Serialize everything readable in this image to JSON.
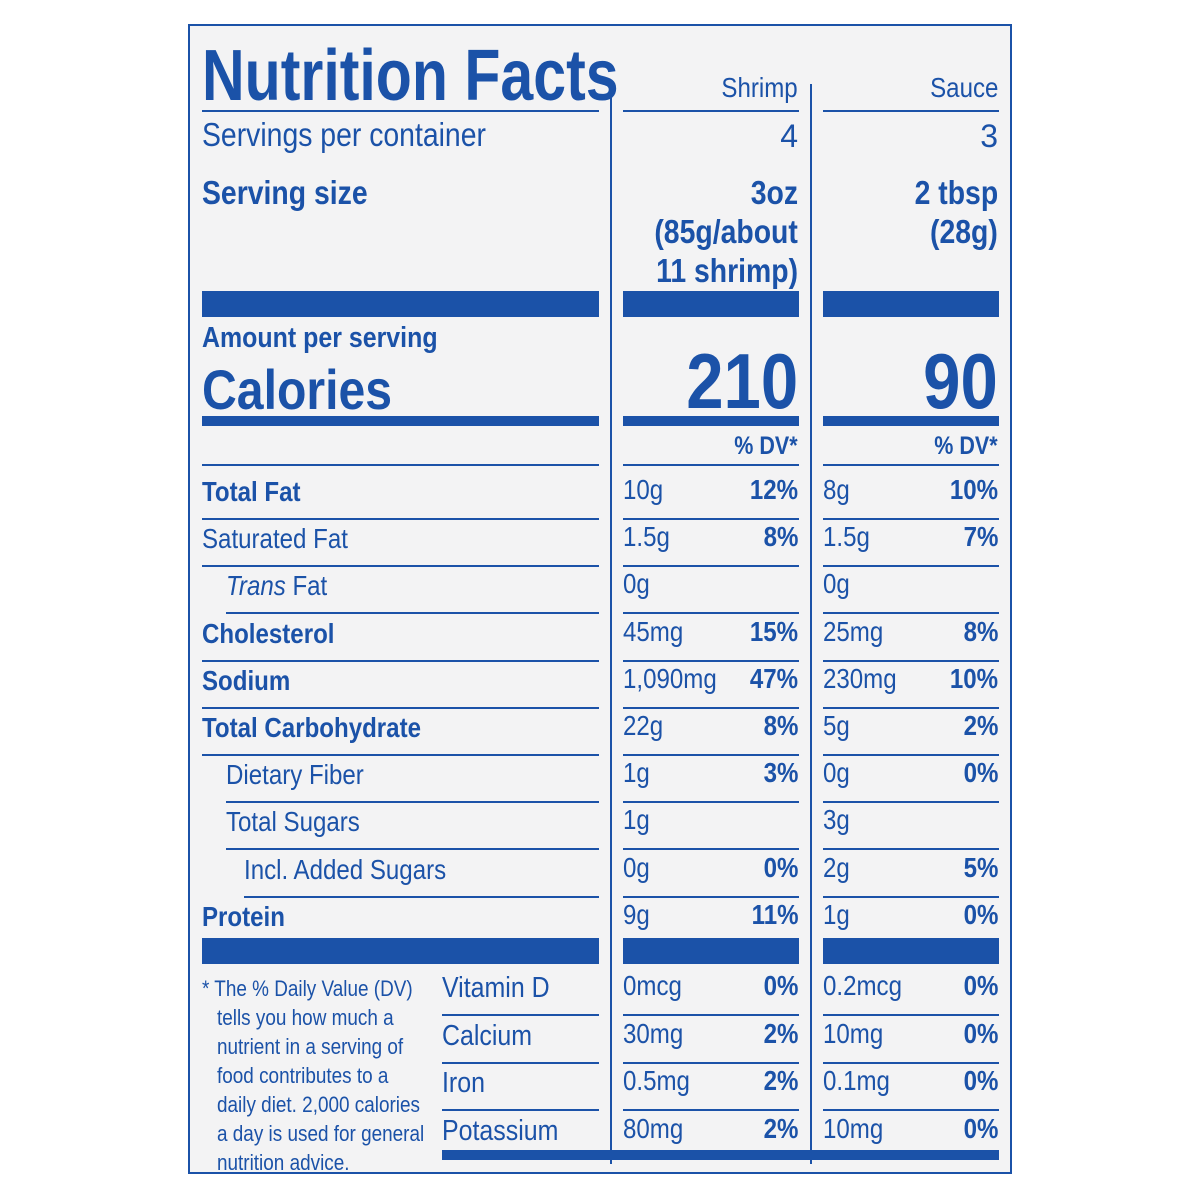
{
  "title": "Nutrition Facts",
  "columns": [
    {
      "name": "Shrimp",
      "servings_per_container": "4",
      "serving_size": [
        "3oz",
        "(85g/about",
        "11 shrimp)"
      ],
      "calories": "210",
      "dv_header": "% DV*"
    },
    {
      "name": "Sauce",
      "servings_per_container": "3",
      "serving_size": [
        "2 tbsp",
        "(28g)"
      ],
      "calories": "90",
      "dv_header": "% DV*"
    }
  ],
  "servings_label": "Servings per container",
  "serving_size_label": "Serving size",
  "amount_per_serving": "Amount per serving",
  "calories_label": "Calories",
  "nutrients": [
    {
      "label": "Total Fat",
      "bold": true,
      "indent": 0,
      "shrimp": "10g",
      "shrimp_dv": "12%",
      "sauce": "8g",
      "sauce_dv": "10%"
    },
    {
      "label": "Saturated Fat",
      "bold": false,
      "indent": 0,
      "shrimp": "1.5g",
      "shrimp_dv": "8%",
      "sauce": "1.5g",
      "sauce_dv": "7%"
    },
    {
      "label_italic": "Trans",
      "label": " Fat",
      "bold": false,
      "indent": 1,
      "shrimp": "0g",
      "shrimp_dv": "",
      "sauce": "0g",
      "sauce_dv": ""
    },
    {
      "label": "Cholesterol",
      "bold": true,
      "indent": 0,
      "shrimp": "45mg",
      "shrimp_dv": "15%",
      "sauce": "25mg",
      "sauce_dv": "8%"
    },
    {
      "label": "Sodium",
      "bold": true,
      "indent": 0,
      "shrimp": "1,090mg",
      "shrimp_dv": "47%",
      "sauce": "230mg",
      "sauce_dv": "10%"
    },
    {
      "label": "Total Carbohydrate",
      "bold": true,
      "indent": 0,
      "shrimp": "22g",
      "shrimp_dv": "8%",
      "sauce": "5g",
      "sauce_dv": "2%"
    },
    {
      "label": "Dietary Fiber",
      "bold": false,
      "indent": 1,
      "shrimp": "1g",
      "shrimp_dv": "3%",
      "sauce": "0g",
      "sauce_dv": "0%"
    },
    {
      "label": "Total Sugars",
      "bold": false,
      "indent": 1,
      "shrimp": "1g",
      "shrimp_dv": "",
      "sauce": "3g",
      "sauce_dv": ""
    },
    {
      "label": "Incl. Added Sugars",
      "bold": false,
      "indent": 2,
      "shrimp": "0g",
      "shrimp_dv": "0%",
      "sauce": "2g",
      "sauce_dv": "5%"
    },
    {
      "label": "Protein",
      "bold": true,
      "indent": 0,
      "shrimp": "9g",
      "shrimp_dv": "11%",
      "sauce": "1g",
      "sauce_dv": "0%"
    }
  ],
  "vitamins": [
    {
      "label": "Vitamin D",
      "shrimp": "0mcg",
      "shrimp_dv": "0%",
      "sauce": "0.2mcg",
      "sauce_dv": "0%"
    },
    {
      "label": "Calcium",
      "shrimp": "30mg",
      "shrimp_dv": "2%",
      "sauce": "10mg",
      "sauce_dv": "0%"
    },
    {
      "label": "Iron",
      "shrimp": "0.5mg",
      "shrimp_dv": "2%",
      "sauce": "0.1mg",
      "sauce_dv": "0%"
    },
    {
      "label": "Potassium",
      "shrimp": "80mg",
      "shrimp_dv": "2%",
      "sauce": "10mg",
      "sauce_dv": "0%"
    }
  ],
  "footnote_lines": [
    "* The % Daily Value (DV)",
    "tells you how much a",
    "nutrient in a serving of",
    "food contributes to a",
    "daily diet. 2,000 calories",
    "a day is used for general",
    "nutrition advice."
  ],
  "colors": {
    "ink": "#1b52a8",
    "background": "#f3f3f4"
  }
}
